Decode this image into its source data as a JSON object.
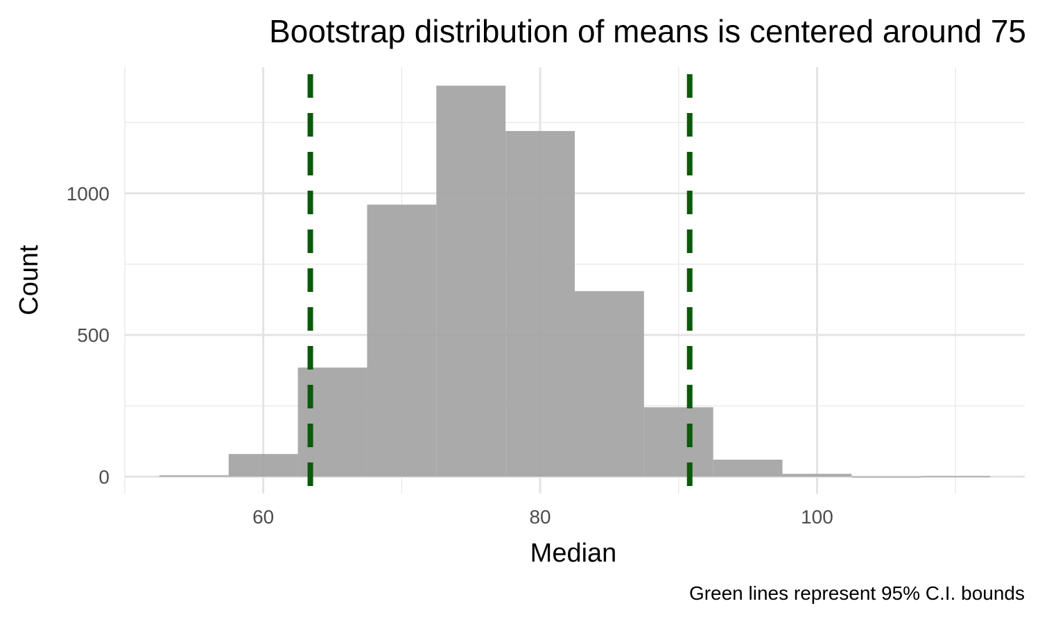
{
  "chart_data": {
    "type": "bar",
    "subtype": "histogram",
    "title": "Bootstrap distribution of means is centered around 75",
    "xlabel": "Median",
    "ylabel": "Count",
    "caption": "Green lines represent 95% C.I. bounds",
    "xlim": [
      50,
      115
    ],
    "ylim": [
      -60,
      1445
    ],
    "x_ticks": [
      60,
      80,
      100
    ],
    "y_ticks": [
      0,
      500,
      1000
    ],
    "grid": true,
    "bin_width": 5,
    "bins": [
      {
        "x_start": 52.5,
        "x_end": 57.5,
        "count": 5
      },
      {
        "x_start": 57.5,
        "x_end": 62.5,
        "count": 80
      },
      {
        "x_start": 62.5,
        "x_end": 67.5,
        "count": 385
      },
      {
        "x_start": 67.5,
        "x_end": 72.5,
        "count": 960
      },
      {
        "x_start": 72.5,
        "x_end": 77.5,
        "count": 1380
      },
      {
        "x_start": 77.5,
        "x_end": 82.5,
        "count": 1220
      },
      {
        "x_start": 82.5,
        "x_end": 87.5,
        "count": 655
      },
      {
        "x_start": 87.5,
        "x_end": 92.5,
        "count": 245
      },
      {
        "x_start": 92.5,
        "x_end": 97.5,
        "count": 60
      },
      {
        "x_start": 97.5,
        "x_end": 102.5,
        "count": 10
      },
      {
        "x_start": 102.5,
        "x_end": 107.5,
        "count": 0
      },
      {
        "x_start": 107.5,
        "x_end": 112.5,
        "count": 2
      }
    ],
    "reference_lines": [
      {
        "x": 63.4,
        "style": "dashed",
        "color": "#0b5a0b"
      },
      {
        "x": 90.8,
        "style": "dashed",
        "color": "#0b5a0b"
      }
    ],
    "bar_color": "#a3a3a3"
  }
}
